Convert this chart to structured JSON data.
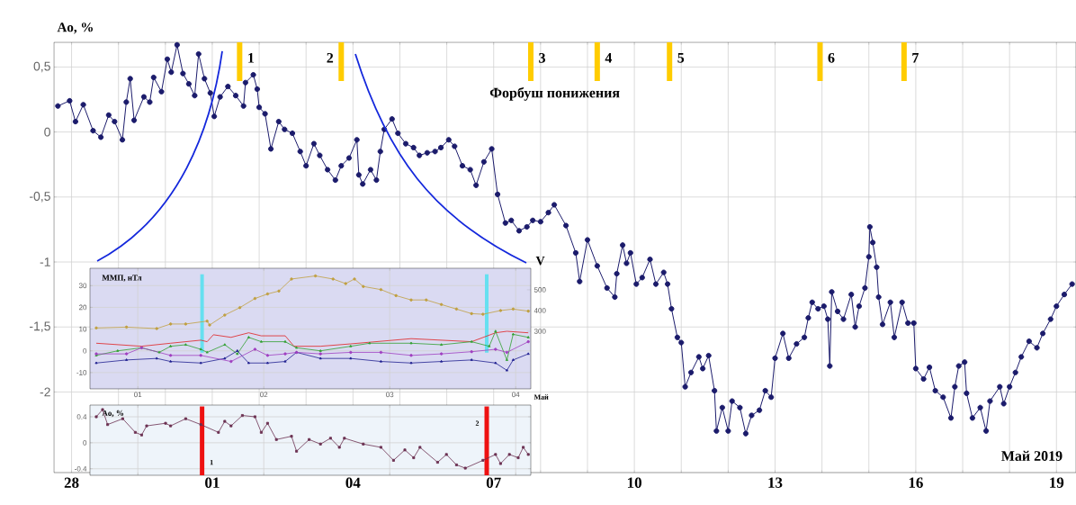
{
  "chart_data": [
    {
      "type": "line",
      "ylabel": "Ao, %",
      "xlim": [
        "2019-04-27T15:00",
        "2019-05-19T10:00"
      ],
      "ylim": [
        -2.62,
        0.69
      ],
      "xticks": [
        {
          "value": "2019-04-28",
          "label": "28"
        },
        {
          "value": "2019-04-29",
          "label": null
        },
        {
          "value": "2019-04-30",
          "label": null
        },
        {
          "value": "2019-05-01",
          "label": "01"
        },
        {
          "value": "2019-05-02",
          "label": null
        },
        {
          "value": "2019-05-03",
          "label": null
        },
        {
          "value": "2019-05-04",
          "label": "04"
        },
        {
          "value": "2019-05-05",
          "label": null
        },
        {
          "value": "2019-05-06",
          "label": null
        },
        {
          "value": "2019-05-07",
          "label": "07"
        },
        {
          "value": "2019-05-08",
          "label": null
        },
        {
          "value": "2019-05-09",
          "label": null
        },
        {
          "value": "2019-05-10",
          "label": "10"
        },
        {
          "value": "2019-05-11",
          "label": null
        },
        {
          "value": "2019-05-12",
          "label": null
        },
        {
          "value": "2019-05-13",
          "label": "13"
        },
        {
          "value": "2019-05-14",
          "label": null
        },
        {
          "value": "2019-05-15",
          "label": null
        },
        {
          "value": "2019-05-16",
          "label": "16"
        },
        {
          "value": "2019-05-17",
          "label": null
        },
        {
          "value": "2019-05-18",
          "label": null
        },
        {
          "value": "2019-05-19",
          "label": "19"
        }
      ],
      "yticks": [
        {
          "value": 0.5,
          "label": "0,5"
        },
        0,
        {
          "value": -0.5,
          "label": "-0,5"
        },
        -1,
        {
          "value": -1.5,
          "label": "-1,5"
        },
        -2
      ],
      "grid": true,
      "marker": "circle",
      "series": [
        {
          "color": "#1b1b6b",
          "x": [
            "2019-04-27T17:00",
            "2019-04-27T23:00",
            "2019-04-28T02:00",
            "2019-04-28T06:00",
            "2019-04-28T11:00",
            "2019-04-28T15:00",
            "2019-04-28T19:00",
            "2019-04-28T22:00",
            "2019-04-29T02:00",
            "2019-04-29T04:00",
            "2019-04-29T06:00",
            "2019-04-29T08:00",
            "2019-04-29T13:00",
            "2019-04-29T16:00",
            "2019-04-29T18:00",
            "2019-04-29T22:00",
            "2019-04-30T01:00",
            "2019-04-30T03:00",
            "2019-04-30T06:00",
            "2019-04-30T09:00",
            "2019-04-30T12:00",
            "2019-04-30T15:00",
            "2019-04-30T17:00",
            "2019-04-30T20:00",
            "2019-04-30T23:00",
            "2019-05-01T01:00",
            "2019-05-01T04:00",
            "2019-05-01T08:00",
            "2019-05-01T12:00",
            "2019-05-01T16:00",
            "2019-05-01T17:00",
            "2019-05-01T21:00",
            "2019-05-01T23:00",
            "2019-05-02T00:00",
            "2019-05-02T03:00",
            "2019-05-02T06:00",
            "2019-05-02T10:00",
            "2019-05-02T13:00",
            "2019-05-02T17:00",
            "2019-05-02T21:00",
            "2019-05-03T00:00",
            "2019-05-03T04:00",
            "2019-05-03T07:00",
            "2019-05-03T11:00",
            "2019-05-03T15:00",
            "2019-05-03T18:00",
            "2019-05-03T22:00",
            "2019-05-04T02:00",
            "2019-05-04T03:00",
            "2019-05-04T05:00",
            "2019-05-04T09:00",
            "2019-05-04T12:00",
            "2019-05-04T14:00",
            "2019-05-04T16:00",
            "2019-05-04T20:00",
            "2019-05-04T23:00",
            "2019-05-05T03:00",
            "2019-05-05T07:00",
            "2019-05-05T10:00",
            "2019-05-05T14:00",
            "2019-05-05T18:00",
            "2019-05-05T21:00",
            "2019-05-06T01:00",
            "2019-05-06T04:00",
            "2019-05-06T08:00",
            "2019-05-06T12:00",
            "2019-05-06T15:00",
            "2019-05-06T19:00",
            "2019-05-06T23:00",
            "2019-05-07T02:00",
            "2019-05-07T06:00",
            "2019-05-07T09:00",
            "2019-05-07T13:00",
            "2019-05-07T17:00",
            "2019-05-07T20:00",
            "2019-05-08T00:00",
            "2019-05-08T04:00",
            "2019-05-08T07:00",
            "2019-05-08T13:00",
            "2019-05-08T18:00",
            "2019-05-08T20:00",
            "2019-05-09T00:00",
            "2019-05-09T05:00",
            "2019-05-09T10:00",
            "2019-05-09T14:00",
            "2019-05-09T15:00",
            "2019-05-09T18:00",
            "2019-05-09T20:00",
            "2019-05-09T22:00",
            "2019-05-10T01:00",
            "2019-05-10T04:00",
            "2019-05-10T08:00",
            "2019-05-10T11:00",
            "2019-05-10T15:00",
            "2019-05-10T17:00",
            "2019-05-10T19:00",
            "2019-05-10T22:00",
            "2019-05-11T00:00",
            "2019-05-11T02:00",
            "2019-05-11T05:00",
            "2019-05-11T09:00",
            "2019-05-11T11:00",
            "2019-05-11T14:00",
            "2019-05-11T17:00",
            "2019-05-11T18:00",
            "2019-05-11T21:00",
            "2019-05-12T00:00",
            "2019-05-12T02:00",
            "2019-05-12T06:00",
            "2019-05-12T09:00",
            "2019-05-12T12:00",
            "2019-05-12T16:00",
            "2019-05-12T19:00",
            "2019-05-12T22:00",
            "2019-05-13T00:00",
            "2019-05-13T04:00",
            "2019-05-13T07:00",
            "2019-05-13T11:00",
            "2019-05-13T15:00",
            "2019-05-13T17:00",
            "2019-05-13T19:00",
            "2019-05-13T22:00",
            "2019-05-14T01:00",
            "2019-05-14T03:00",
            "2019-05-14T04:00",
            "2019-05-14T05:00",
            "2019-05-14T08:00",
            "2019-05-14T11:00",
            "2019-05-14T15:00",
            "2019-05-14T17:00",
            "2019-05-14T19:00",
            "2019-05-14T22:00",
            "2019-05-15T00:00",
            "2019-05-15T00:30",
            "2019-05-15T02:00",
            "2019-05-15T04:00",
            "2019-05-15T05:00",
            "2019-05-15T07:00",
            "2019-05-15T11:00",
            "2019-05-15T13:00",
            "2019-05-15T17:00",
            "2019-05-15T20:00",
            "2019-05-15T23:00",
            "2019-05-16T00:00",
            "2019-05-16T04:00",
            "2019-05-16T07:00",
            "2019-05-16T10:00",
            "2019-05-16T14:00",
            "2019-05-16T18:00",
            "2019-05-16T20:00",
            "2019-05-16T22:00",
            "2019-05-17T01:00",
            "2019-05-17T02:00",
            "2019-05-17T05:00",
            "2019-05-17T09:00",
            "2019-05-17T12:00",
            "2019-05-17T14:00",
            "2019-05-17T19:00",
            "2019-05-17T21:00",
            "2019-05-18T00:00",
            "2019-05-18T03:00",
            "2019-05-18T06:00",
            "2019-05-18T10:00",
            "2019-05-18T14:00",
            "2019-05-18T17:00",
            "2019-05-18T21:00",
            "2019-05-19T00:00",
            "2019-05-19T04:00",
            "2019-05-19T08:00"
          ],
          "values": [
            0.2,
            0.24,
            0.08,
            0.21,
            0.01,
            -0.04,
            0.13,
            0.08,
            -0.06,
            0.23,
            0.41,
            0.09,
            0.27,
            0.23,
            0.42,
            0.31,
            0.56,
            0.46,
            0.67,
            0.45,
            0.37,
            0.28,
            0.6,
            0.41,
            0.3,
            0.12,
            0.27,
            0.35,
            0.28,
            0.2,
            0.38,
            0.44,
            0.33,
            0.19,
            0.14,
            -0.13,
            0.08,
            0.02,
            -0.01,
            -0.15,
            -0.26,
            -0.09,
            -0.18,
            -0.29,
            -0.37,
            -0.26,
            -0.2,
            -0.06,
            -0.33,
            -0.4,
            -0.29,
            -0.37,
            -0.15,
            0.02,
            0.1,
            -0.01,
            -0.09,
            -0.12,
            -0.18,
            -0.16,
            -0.15,
            -0.12,
            -0.06,
            -0.11,
            -0.26,
            -0.29,
            -0.41,
            -0.23,
            -0.13,
            -0.48,
            -0.7,
            -0.68,
            -0.76,
            -0.73,
            -0.68,
            -0.69,
            -0.62,
            -0.56,
            -0.72,
            -0.93,
            -1.15,
            -0.83,
            -1.03,
            -1.2,
            -1.27,
            -1.09,
            -0.87,
            -1.01,
            -0.93,
            -1.17,
            -1.12,
            -0.98,
            -1.17,
            -1.08,
            -1.17,
            -1.36,
            -1.58,
            -1.62,
            -1.96,
            -1.85,
            -1.73,
            -1.82,
            -1.72,
            -1.99,
            -2.3,
            -2.12,
            -2.3,
            -2.07,
            -2.12,
            -2.32,
            -2.18,
            -2.14,
            -1.99,
            -2.04,
            -1.74,
            -1.55,
            -1.74,
            -1.63,
            -1.58,
            -1.43,
            -1.31,
            -1.36,
            -1.34,
            -1.44,
            -1.8,
            -1.23,
            -1.38,
            -1.44,
            -1.25,
            -1.5,
            -1.34,
            -1.2,
            -0.96,
            -0.73,
            -0.85,
            -1.04,
            -1.27,
            -1.48,
            -1.31,
            -1.58,
            -1.31,
            -1.47,
            -1.47,
            -1.82,
            -1.9,
            -1.81,
            -1.99,
            -2.04,
            -2.2,
            -1.96,
            -1.8,
            -1.77,
            -2.01,
            -2.2,
            -2.12,
            -2.3,
            -2.07,
            -1.96,
            -2.09,
            -1.96,
            -1.85,
            -1.73,
            -1.61,
            -1.66,
            -1.55,
            -1.44,
            -1.34,
            -1.25,
            -1.17
          ]
        }
      ],
      "ref_lines": [
        {
          "axis": "x",
          "value": "2019-05-01T14:00",
          "color": "#ffcc00"
        },
        {
          "axis": "x",
          "value": "2019-05-03T18:00",
          "color": "#ffcc00"
        },
        {
          "axis": "x",
          "value": "2019-05-07T19:00",
          "color": "#ffcc00"
        },
        {
          "axis": "x",
          "value": "2019-05-09T05:00",
          "color": "#ffcc00"
        },
        {
          "axis": "x",
          "value": "2019-05-10T18:00",
          "color": "#ffcc00"
        },
        {
          "axis": "x",
          "value": "2019-05-13T23:00",
          "color": "#ffcc00"
        },
        {
          "axis": "x",
          "value": "2019-05-15T18:00",
          "color": "#ffcc00"
        }
      ],
      "annotations": [
        "Форбуш понижения",
        "Май 2019",
        {
          "text": "1",
          "x": "2019-05-01T14:00",
          "y": 0.57
        },
        {
          "text": "2",
          "x": "2019-05-03T18:00",
          "y": 0.57
        },
        {
          "text": "3",
          "x": "2019-05-07T19:00",
          "y": 0.57
        },
        {
          "text": "4",
          "x": "2019-05-09T05:00",
          "y": 0.57
        },
        {
          "text": "5",
          "x": "2019-05-10T18:00",
          "y": 0.57
        },
        {
          "text": "6",
          "x": "2019-05-13T23:00",
          "y": 0.57
        },
        {
          "text": "7",
          "x": "2019-05-15T18:00",
          "y": 0.57
        }
      ]
    },
    {
      "type": "line",
      "title": "ММП, нТл",
      "y2label": "V",
      "xlim": [
        0.62,
        4.12
      ],
      "ylim": [
        -17.5,
        38
      ],
      "y2lim": [
        22,
        604
      ],
      "xticks": [
        {
          "value": 1,
          "label": "01"
        },
        {
          "value": 2,
          "label": "02"
        },
        {
          "value": 3,
          "label": "03"
        },
        {
          "value": 4,
          "label": "04"
        }
      ],
      "yticks": [
        -10,
        0,
        10,
        20,
        30
      ],
      "y2ticks": [
        300,
        400,
        500
      ],
      "grid": true,
      "series": [
        {
          "color": "#c0a040",
          "axis": "y2",
          "marker": "circle",
          "x": [
            0.67,
            0.91,
            1.15,
            1.26,
            1.38,
            1.55,
            1.57,
            1.69,
            1.81,
            1.93,
            2.03,
            2.12,
            2.22,
            2.41,
            2.55,
            2.65,
            2.72,
            2.79,
            2.93,
            3.05,
            3.17,
            3.29,
            3.41,
            3.53,
            3.65,
            3.74,
            3.88,
            3.98,
            4.1
          ],
          "values": [
            316,
            320,
            313,
            335,
            335,
            349,
            330,
            378,
            414,
            458,
            480,
            494,
            552,
            567,
            552,
            530,
            552,
            516,
            501,
            472,
            451,
            451,
            429,
            407,
            385,
            382,
            400,
            407,
            397
          ]
        },
        {
          "color": "#e02020",
          "marker": "none",
          "x": [
            0.67,
            1.03,
            1.26,
            1.5,
            1.55,
            1.6,
            1.74,
            1.88,
            1.98,
            2.17,
            2.24,
            2.45,
            2.69,
            3.17,
            3.65,
            3.84,
            3.93,
            4.1
          ],
          "values": [
            3.5,
            2.1,
            3.5,
            4.9,
            4.2,
            7.4,
            6.2,
            8.3,
            6.9,
            6.9,
            2.1,
            2.1,
            3.2,
            5.6,
            4.2,
            8.3,
            9.0,
            8.3
          ]
        },
        {
          "color": "#30a030",
          "marker": "triangle",
          "x": [
            0.67,
            0.84,
            1.03,
            1.17,
            1.26,
            1.38,
            1.5,
            1.55,
            1.69,
            1.79,
            1.88,
            1.98,
            2.17,
            2.26,
            2.45,
            2.69,
            2.84,
            3.17,
            3.41,
            3.65,
            3.79,
            3.84,
            3.93,
            3.98,
            4.1
          ],
          "values": [
            -2.1,
            0,
            1.4,
            -0.7,
            2.1,
            2.8,
            0.7,
            -0.7,
            2.8,
            -1.4,
            6.2,
            4.2,
            4.2,
            1.4,
            0,
            2.1,
            3.5,
            3.5,
            2.8,
            4.2,
            2.1,
            9.0,
            -4.2,
            7.6,
            6.2
          ]
        },
        {
          "color": "#202090",
          "marker": "triangle",
          "x": [
            0.67,
            0.91,
            1.15,
            1.26,
            1.5,
            1.69,
            1.79,
            1.88,
            2.03,
            2.17,
            2.26,
            2.45,
            2.69,
            2.93,
            3.17,
            3.41,
            3.65,
            3.84,
            3.93,
            3.98,
            4.1
          ],
          "values": [
            -5.6,
            -4.2,
            -3.5,
            -4.9,
            -5.6,
            -3.5,
            0,
            -5.6,
            -5.6,
            -4.9,
            -0.7,
            -3.5,
            -3.5,
            -4.9,
            -5.6,
            -4.9,
            -4.2,
            -5.6,
            -9.0,
            -4.2,
            -1.4
          ]
        },
        {
          "color": "#a040c0",
          "marker": "circle",
          "x": [
            0.67,
            0.91,
            1.03,
            1.26,
            1.5,
            1.74,
            1.93,
            2.03,
            2.17,
            2.26,
            2.45,
            2.69,
            2.93,
            3.17,
            3.41,
            3.65,
            3.84,
            3.93,
            4.1
          ],
          "values": [
            -1.4,
            -1.4,
            1.4,
            -2.1,
            -2.1,
            -4.9,
            0.7,
            -2.1,
            -1.4,
            -0.7,
            -1.4,
            -0.7,
            -0.7,
            -2.1,
            -1.4,
            -0.4,
            0.7,
            -0.7,
            4.2
          ]
        }
      ],
      "ref_lines": [
        {
          "axis": "x",
          "value": 1.51,
          "color": "#66e0f0"
        },
        {
          "axis": "x",
          "value": 3.77,
          "color": "#66e0f0"
        }
      ],
      "annotations": [
        "Май"
      ]
    },
    {
      "type": "line",
      "title": "Ao, %",
      "xlim": [
        0.62,
        4.12
      ],
      "ylim": [
        -0.5,
        0.58
      ],
      "xticks": [
        1,
        2,
        3,
        4
      ],
      "yticks": [
        0.4,
        0,
        -0.4
      ],
      "tick_labels": "y",
      "grid": true,
      "marker": "square",
      "series": [
        {
          "color": "#6b3050",
          "x": [
            0.67,
            0.72,
            0.76,
            0.88,
            0.98,
            1.03,
            1.07,
            1.22,
            1.26,
            1.38,
            1.5,
            1.64,
            1.69,
            1.74,
            1.83,
            1.93,
            1.98,
            2.03,
            2.1,
            2.22,
            2.26,
            2.36,
            2.45,
            2.53,
            2.6,
            2.64,
            2.79,
            2.93,
            3.03,
            3.12,
            3.19,
            3.24,
            3.38,
            3.45,
            3.53,
            3.6,
            3.74,
            3.84,
            3.88,
            3.95,
            4.02,
            4.06,
            4.1
          ],
          "values": [
            0.4,
            0.51,
            0.28,
            0.37,
            0.16,
            0.12,
            0.26,
            0.3,
            0.26,
            0.37,
            0.28,
            0.16,
            0.33,
            0.26,
            0.42,
            0.4,
            0.16,
            0.3,
            0.05,
            0.1,
            -0.13,
            0.05,
            -0.02,
            0.07,
            -0.07,
            0.07,
            -0.02,
            -0.07,
            -0.27,
            -0.11,
            -0.23,
            -0.07,
            -0.3,
            -0.18,
            -0.34,
            -0.39,
            -0.27,
            -0.18,
            -0.32,
            -0.18,
            -0.23,
            -0.07,
            -0.18
          ]
        }
      ],
      "ref_lines": [
        {
          "axis": "x",
          "value": 1.51,
          "color": "#ee1111"
        },
        {
          "axis": "x",
          "value": 3.77,
          "color": "#ee1111"
        }
      ],
      "annotations": [
        {
          "text": "1",
          "x": 1.51,
          "y": -0.3
        },
        {
          "text": "2",
          "x": 3.77,
          "y": 0.3
        }
      ]
    }
  ]
}
